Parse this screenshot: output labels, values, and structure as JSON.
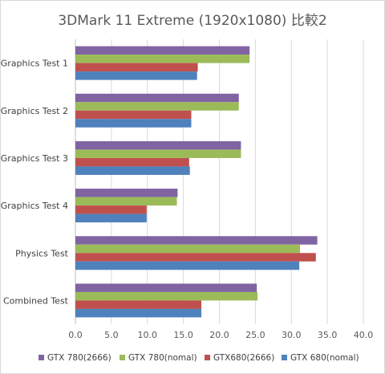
{
  "chart_data": {
    "type": "bar",
    "orientation": "horizontal",
    "title": "3DMark 11 Extreme (1920x1080) 比較2",
    "categories": [
      "Graphics Test 1",
      "Graphics Test 2",
      "Graphics Test 3",
      "Graphics Test 4",
      "Physics Test",
      "Combined Test"
    ],
    "series": [
      {
        "name": "GTX 780(2666)",
        "color": "#8064a2",
        "values": [
          24.2,
          22.7,
          23.0,
          14.2,
          33.6,
          25.2
        ]
      },
      {
        "name": "GTX 780(nomal)",
        "color": "#9bbb59",
        "values": [
          24.2,
          22.7,
          23.0,
          14.1,
          31.2,
          25.3
        ]
      },
      {
        "name": "GTX680(2666)",
        "color": "#c0504d",
        "values": [
          17.0,
          16.1,
          15.8,
          9.9,
          33.4,
          17.5
        ]
      },
      {
        "name": "GTX 680(nomal)",
        "color": "#4f81bd",
        "values": [
          16.9,
          16.1,
          15.9,
          9.9,
          31.1,
          17.5
        ]
      }
    ],
    "xlim": [
      0,
      40
    ],
    "xticks": [
      "0.0",
      "5.0",
      "10.0",
      "15.0",
      "20.0",
      "25.0",
      "30.0",
      "35.0",
      "40.0"
    ],
    "grid": true,
    "legend_position": "bottom",
    "gridline_color": "#d9d9d9"
  }
}
